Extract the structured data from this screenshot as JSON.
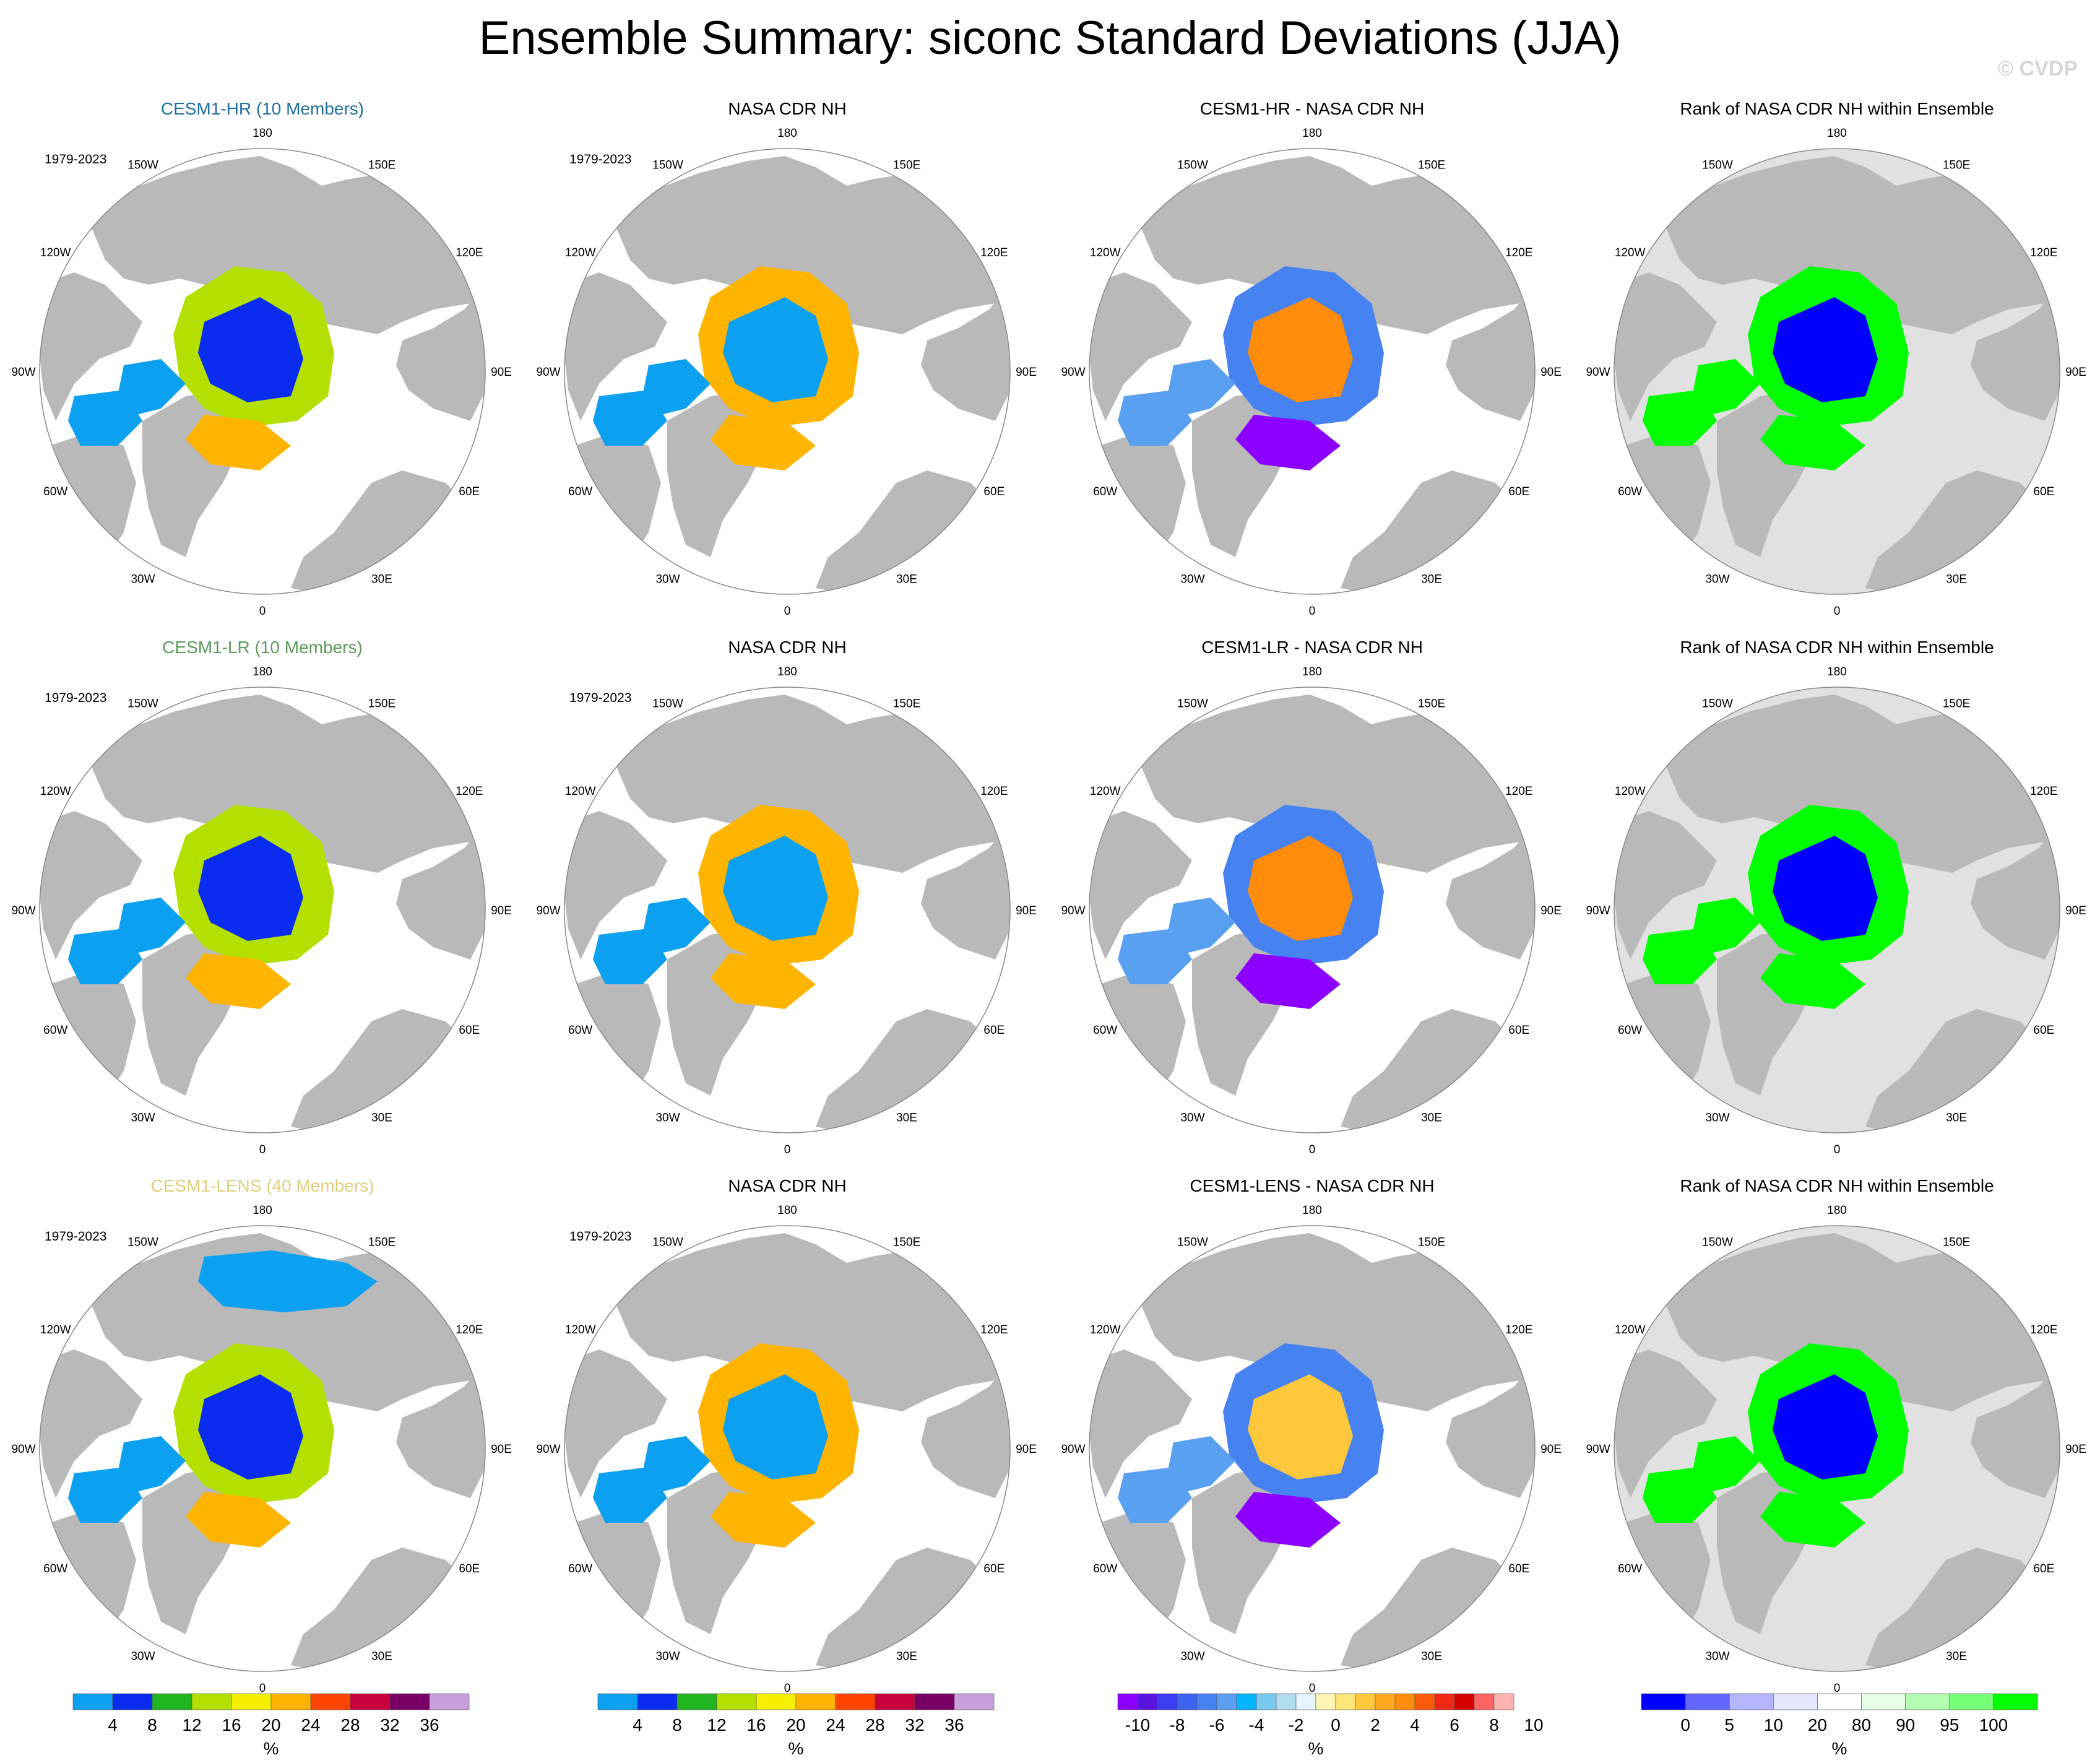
{
  "title": "Ensemble Summary: siconc Standard Deviations (JJA)",
  "watermark": "© CVDP",
  "longitude_labels": [
    "180",
    "150E",
    "120E",
    "90E",
    "60E",
    "30E",
    "0",
    "30W",
    "60W",
    "90W",
    "120W",
    "150W"
  ],
  "panels": [
    {
      "row": 0,
      "col": 0,
      "title": "CESM1-HR (10 Members)",
      "title_color": "#1f6fa0",
      "period": "1979-2023",
      "kind": "sd",
      "ice_extent": "large",
      "center": "blue"
    },
    {
      "row": 0,
      "col": 1,
      "title": "NASA CDR NH",
      "title_color": "#000000",
      "period": "1979-2023",
      "kind": "sd",
      "ice_extent": "medium",
      "center": "lightblue"
    },
    {
      "row": 0,
      "col": 2,
      "title": "CESM1-HR - NASA CDR NH",
      "title_color": "#000000",
      "period": "",
      "kind": "diff",
      "center": "orange"
    },
    {
      "row": 0,
      "col": 3,
      "title": "Rank of NASA CDR NH within Ensemble",
      "title_color": "#000000",
      "period": "",
      "kind": "rank",
      "center": "blue"
    },
    {
      "row": 1,
      "col": 0,
      "title": "CESM1-LR (10 Members)",
      "title_color": "#5a9a5a",
      "period": "1979-2023",
      "kind": "sd",
      "ice_extent": "large",
      "center": "blue"
    },
    {
      "row": 1,
      "col": 1,
      "title": "NASA CDR NH",
      "title_color": "#000000",
      "period": "1979-2023",
      "kind": "sd",
      "ice_extent": "medium",
      "center": "lightblue"
    },
    {
      "row": 1,
      "col": 2,
      "title": "CESM1-LR - NASA CDR NH",
      "title_color": "#000000",
      "period": "",
      "kind": "diff",
      "center": "orange"
    },
    {
      "row": 1,
      "col": 3,
      "title": "Rank of NASA CDR NH within Ensemble",
      "title_color": "#000000",
      "period": "",
      "kind": "rank",
      "center": "blue"
    },
    {
      "row": 2,
      "col": 0,
      "title": "CESM1-LENS (40 Members)",
      "title_color": "#e0cf7a",
      "period": "1979-2023",
      "kind": "sd",
      "ice_extent": "huge",
      "center": "blue"
    },
    {
      "row": 2,
      "col": 1,
      "title": "NASA CDR NH",
      "title_color": "#000000",
      "period": "1979-2023",
      "kind": "sd",
      "ice_extent": "medium",
      "center": "lightblue"
    },
    {
      "row": 2,
      "col": 2,
      "title": "CESM1-LENS - NASA CDR NH",
      "title_color": "#000000",
      "period": "",
      "kind": "diff",
      "center": "yellow"
    },
    {
      "row": 2,
      "col": 3,
      "title": "Rank of NASA CDR NH within Ensemble",
      "title_color": "#000000",
      "period": "",
      "kind": "rank",
      "center": "blue"
    }
  ],
  "colorbars": [
    {
      "id": "sd1",
      "units": "%",
      "colors": [
        "#0ba0f0",
        "#0a2cf0",
        "#22b522",
        "#b3e000",
        "#f4f000",
        "#ffb400",
        "#ff4400",
        "#c8003c",
        "#780064",
        "#c8a0dc"
      ],
      "labels": [
        "4",
        "8",
        "12",
        "16",
        "20",
        "24",
        "28",
        "32",
        "36"
      ]
    },
    {
      "id": "sd2",
      "units": "%",
      "colors": [
        "#0ba0f0",
        "#0a2cf0",
        "#22b522",
        "#b3e000",
        "#f4f000",
        "#ffb400",
        "#ff4400",
        "#c8003c",
        "#780064",
        "#c8a0dc"
      ],
      "labels": [
        "4",
        "8",
        "12",
        "16",
        "20",
        "24",
        "28",
        "32",
        "36"
      ]
    },
    {
      "id": "diff",
      "units": "%",
      "colors": [
        "#8c00ff",
        "#5a14e0",
        "#3c3cf0",
        "#3c64f0",
        "#4682f0",
        "#5aa0f0",
        "#00b4ff",
        "#78c8f0",
        "#b4dcf0",
        "#e6f5ff",
        "#fff5b4",
        "#ffe678",
        "#ffc83c",
        "#ffaa1e",
        "#ff8c0a",
        "#ff5a0a",
        "#f02814",
        "#d70000",
        "#ff6464",
        "#ffb4b4"
      ],
      "labels": [
        "-10",
        "-8",
        "-6",
        "-4",
        "-2",
        "0",
        "2",
        "4",
        "6",
        "8",
        "10"
      ]
    },
    {
      "id": "rank",
      "units": "%",
      "colors": [
        "#0000ff",
        "#6464ff",
        "#b4b4ff",
        "#e6e6ff",
        "#ffffff",
        "#e6ffe6",
        "#b4ffb4",
        "#78ff78",
        "#00ff00"
      ],
      "labels": [
        "0",
        "5",
        "10",
        "20",
        "80",
        "90",
        "95",
        "100"
      ]
    }
  ]
}
